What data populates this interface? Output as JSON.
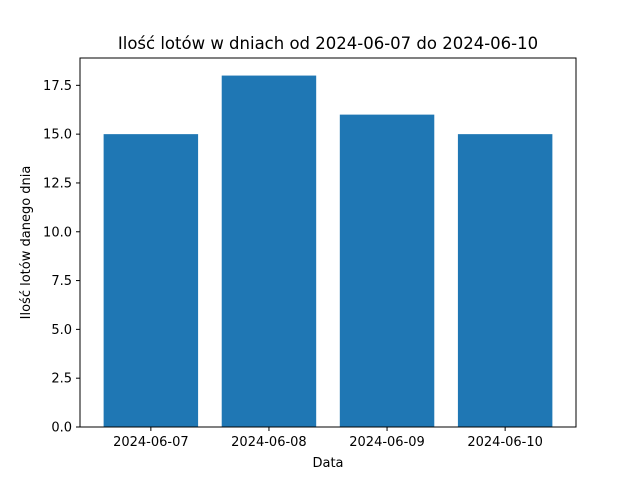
{
  "chart_data": {
    "type": "bar",
    "title": "Ilość lotów w dniach od 2024-06-07 do 2024-06-10",
    "xlabel": "Data",
    "ylabel": "Ilość lotów danego dnia",
    "categories": [
      "2024-06-07",
      "2024-06-08",
      "2024-06-09",
      "2024-06-10"
    ],
    "values": [
      15,
      18,
      16,
      15
    ],
    "ylim": [
      0,
      18.9
    ],
    "yticks": [
      0.0,
      2.5,
      5.0,
      7.5,
      10.0,
      12.5,
      15.0,
      17.5
    ],
    "ytick_labels": [
      "0.0",
      "2.5",
      "5.0",
      "7.5",
      "10.0",
      "12.5",
      "15.0",
      "17.5"
    ],
    "grid": false,
    "legend": "none",
    "bar_color": "#1f77b4"
  }
}
